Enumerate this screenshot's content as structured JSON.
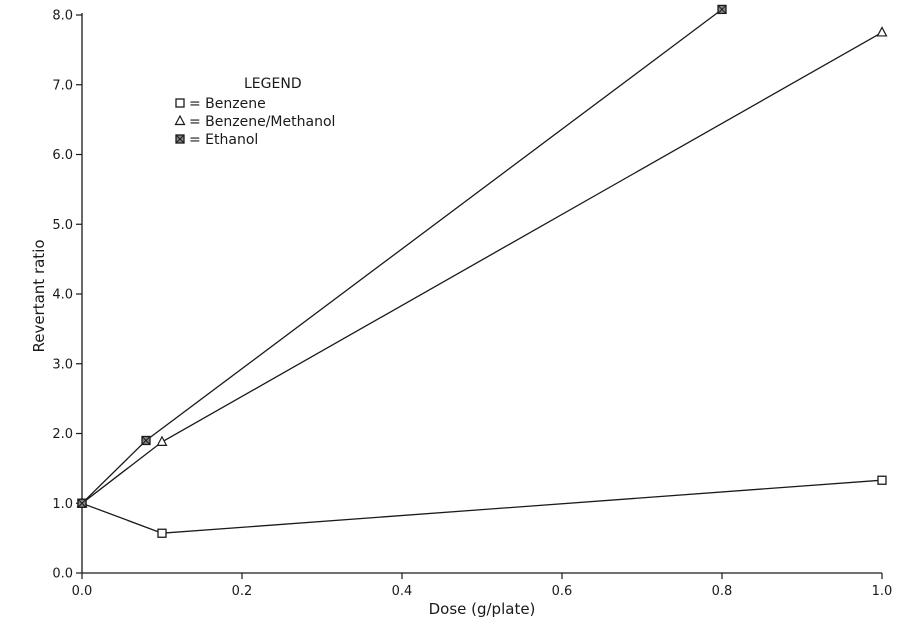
{
  "chart_data": {
    "type": "line",
    "title": "",
    "xlabel": "Dose (g/plate)",
    "ylabel": "Revertant ratio",
    "xlim": [
      0.0,
      1.0
    ],
    "ylim": [
      0.0,
      8.0
    ],
    "x_ticks": [
      "0.0",
      "0.2",
      "0.4",
      "0.6",
      "0.8",
      "1.0"
    ],
    "y_ticks": [
      "0.0",
      "1.0",
      "2.0",
      "3.0",
      "4.0",
      "5.0",
      "6.0",
      "7.0",
      "8.0"
    ],
    "grid": false,
    "legend": {
      "title": "LEGEND",
      "placement": "top-left",
      "entries": [
        "= Benzene",
        "= Benzene/Methanol",
        "= Ethanol"
      ]
    },
    "series": [
      {
        "name": "Benzene",
        "marker": "square",
        "x": [
          0.0,
          0.1,
          1.0
        ],
        "y": [
          1.0,
          0.57,
          1.33
        ]
      },
      {
        "name": "Benzene/Methanol",
        "marker": "triangle",
        "x": [
          0.0,
          0.1,
          1.0
        ],
        "y": [
          1.0,
          1.88,
          7.75
        ]
      },
      {
        "name": "Ethanol",
        "marker": "crossed-square",
        "x": [
          0.0,
          0.08,
          0.8
        ],
        "y": [
          1.0,
          1.9,
          8.08
        ]
      }
    ],
    "colors": {
      "line": "#1a1a1a",
      "background": "#ffffff"
    }
  }
}
